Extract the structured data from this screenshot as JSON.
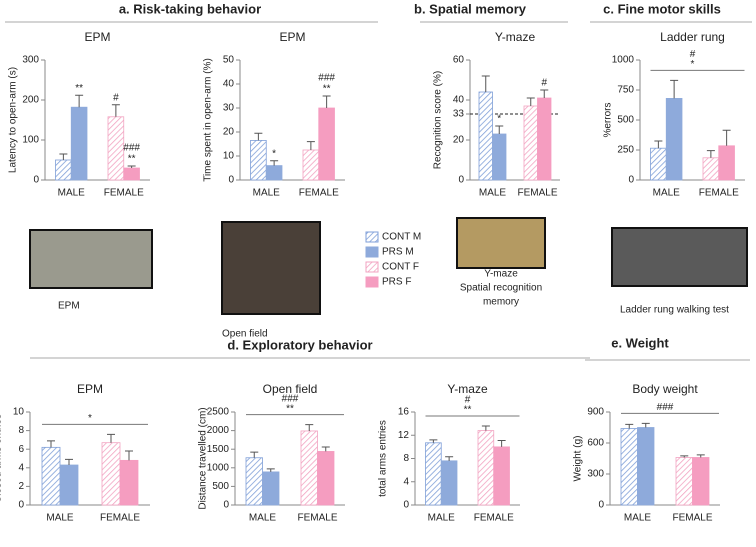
{
  "sections": [
    "a. Risk-taking behavior",
    "b. Spatial memory",
    "c. Fine motor skills",
    "d. Exploratory behavior",
    "e. Weight"
  ],
  "legend": [
    {
      "name": "CONT M",
      "color": "#7f9fd8",
      "hatched": true
    },
    {
      "name": "PRS M",
      "color": "#8eaadb",
      "hatched": false
    },
    {
      "name": "CONT F",
      "color": "#f2a3c1",
      "hatched": true
    },
    {
      "name": "PRS F",
      "color": "#f59dc0",
      "hatched": false
    }
  ],
  "photos": [
    {
      "caption": [
        "EPM"
      ]
    },
    {
      "caption": [
        "Open field"
      ]
    },
    {
      "caption": [
        "Y-maze",
        "Spatial recognition",
        "memory"
      ]
    },
    {
      "caption": [
        "Ladder rung walking test"
      ]
    }
  ],
  "chart_data": [
    {
      "type": "bar",
      "title": "EPM",
      "ylabel": "Latency to open-arm (s)",
      "categories": [
        "MALE",
        "FEMALE"
      ],
      "ylim": [
        0,
        300
      ],
      "yticks": [
        0,
        100,
        200,
        300
      ],
      "series": [
        {
          "values": [
            50,
            null
          ],
          "errors": [
            15,
            null
          ]
        },
        {
          "values": [
            182,
            null
          ],
          "errors": [
            30,
            null
          ],
          "signif": [
            "**"
          ]
        },
        {
          "values": [
            null,
            158
          ],
          "errors": [
            null,
            30
          ],
          "signif": [
            "#"
          ]
        },
        {
          "values": [
            null,
            30
          ],
          "errors": [
            null,
            5
          ],
          "signif": [
            "###",
            "**"
          ]
        }
      ]
    },
    {
      "type": "bar",
      "title": "EPM",
      "ylabel": "Time spent in open-arm (%)",
      "categories": [
        "MALE",
        "FEMALE"
      ],
      "ylim": [
        0,
        50
      ],
      "yticks": [
        0,
        10,
        20,
        30,
        40,
        50
      ],
      "series": [
        {
          "values": [
            16.5,
            null
          ],
          "errors": [
            3,
            null
          ]
        },
        {
          "values": [
            6,
            null
          ],
          "errors": [
            2,
            null
          ],
          "signif": [
            "*"
          ]
        },
        {
          "values": [
            null,
            12.5
          ],
          "errors": [
            null,
            3.5
          ]
        },
        {
          "values": [
            null,
            30
          ],
          "errors": [
            null,
            5
          ],
          "signif": [
            "###",
            "**"
          ]
        }
      ]
    },
    {
      "type": "bar",
      "title": "Y-maze",
      "ylabel": "Recognition score (%)",
      "categories": [
        "MALE",
        "FEMALE"
      ],
      "ylim": [
        0,
        60
      ],
      "yticks": [
        0,
        20,
        33,
        40,
        60
      ],
      "refline": 33,
      "series": [
        {
          "values": [
            44,
            null
          ],
          "errors": [
            8,
            null
          ]
        },
        {
          "values": [
            23,
            null
          ],
          "errors": [
            4,
            null
          ],
          "signif": [
            "*"
          ]
        },
        {
          "values": [
            null,
            37
          ],
          "errors": [
            null,
            4
          ]
        },
        {
          "values": [
            null,
            41
          ],
          "errors": [
            null,
            4
          ],
          "signif": [
            "#"
          ]
        }
      ]
    },
    {
      "type": "bar",
      "title": "Ladder rung",
      "ylabel": "%errors",
      "categories": [
        "MALE",
        "FEMALE"
      ],
      "ylim": [
        0,
        1000
      ],
      "yticks": [
        0,
        250,
        500,
        750,
        1000
      ],
      "bracket": [
        "#",
        "*"
      ],
      "series": [
        {
          "values": [
            265,
            null
          ],
          "errors": [
            60,
            null
          ]
        },
        {
          "values": [
            680,
            null
          ],
          "errors": [
            150,
            null
          ]
        },
        {
          "values": [
            null,
            185
          ],
          "errors": [
            null,
            60
          ]
        },
        {
          "values": [
            null,
            285
          ],
          "errors": [
            null,
            130
          ]
        }
      ]
    },
    {
      "type": "bar",
      "title": "EPM",
      "ylabel": "Closed arms entries",
      "categories": [
        "MALE",
        "FEMALE"
      ],
      "ylim": [
        0,
        10
      ],
      "yticks": [
        0,
        2,
        4,
        6,
        8,
        10
      ],
      "bracket": [
        "*"
      ],
      "series": [
        {
          "values": [
            6.2,
            null
          ],
          "errors": [
            0.7,
            null
          ]
        },
        {
          "values": [
            4.3,
            null
          ],
          "errors": [
            0.6,
            null
          ]
        },
        {
          "values": [
            null,
            6.7
          ],
          "errors": [
            null,
            0.9
          ]
        },
        {
          "values": [
            null,
            4.8
          ],
          "errors": [
            null,
            1
          ]
        }
      ]
    },
    {
      "type": "bar",
      "title": "Open field",
      "ylabel": "Distance travelled (cm)",
      "categories": [
        "MALE",
        "FEMALE"
      ],
      "ylim": [
        0,
        2500
      ],
      "yticks": [
        0,
        500,
        1000,
        1500,
        2000,
        2500
      ],
      "bracket": [
        "###",
        "**"
      ],
      "series": [
        {
          "values": [
            1270,
            null
          ],
          "errors": [
            150,
            null
          ]
        },
        {
          "values": [
            890,
            null
          ],
          "errors": [
            80,
            null
          ]
        },
        {
          "values": [
            null,
            1990
          ],
          "errors": [
            null,
            170
          ]
        },
        {
          "values": [
            null,
            1440
          ],
          "errors": [
            null,
            120
          ]
        }
      ]
    },
    {
      "type": "bar",
      "title": "Y-maze",
      "ylabel": "total arms entries",
      "categories": [
        "MALE",
        "FEMALE"
      ],
      "ylim": [
        0,
        16
      ],
      "yticks": [
        0,
        4,
        8,
        12,
        16
      ],
      "bracket": [
        "#",
        "**"
      ],
      "series": [
        {
          "values": [
            10.7,
            null
          ],
          "errors": [
            0.5,
            null
          ]
        },
        {
          "values": [
            7.6,
            null
          ],
          "errors": [
            0.7,
            null
          ]
        },
        {
          "values": [
            null,
            12.8
          ],
          "errors": [
            null,
            0.8
          ]
        },
        {
          "values": [
            null,
            10
          ],
          "errors": [
            null,
            1.1
          ]
        }
      ]
    },
    {
      "type": "bar",
      "title": "Body weight",
      "ylabel": "Weight (g)",
      "categories": [
        "MALE",
        "FEMALE"
      ],
      "ylim": [
        0,
        900
      ],
      "yticks": [
        0,
        300,
        600,
        900
      ],
      "bracket": [
        "###"
      ],
      "series": [
        {
          "values": [
            740,
            null
          ],
          "errors": [
            40,
            null
          ]
        },
        {
          "values": [
            750,
            null
          ],
          "errors": [
            40,
            null
          ]
        },
        {
          "values": [
            null,
            460
          ],
          "errors": [
            null,
            15
          ]
        },
        {
          "values": [
            null,
            460
          ],
          "errors": [
            null,
            25
          ]
        }
      ]
    }
  ]
}
